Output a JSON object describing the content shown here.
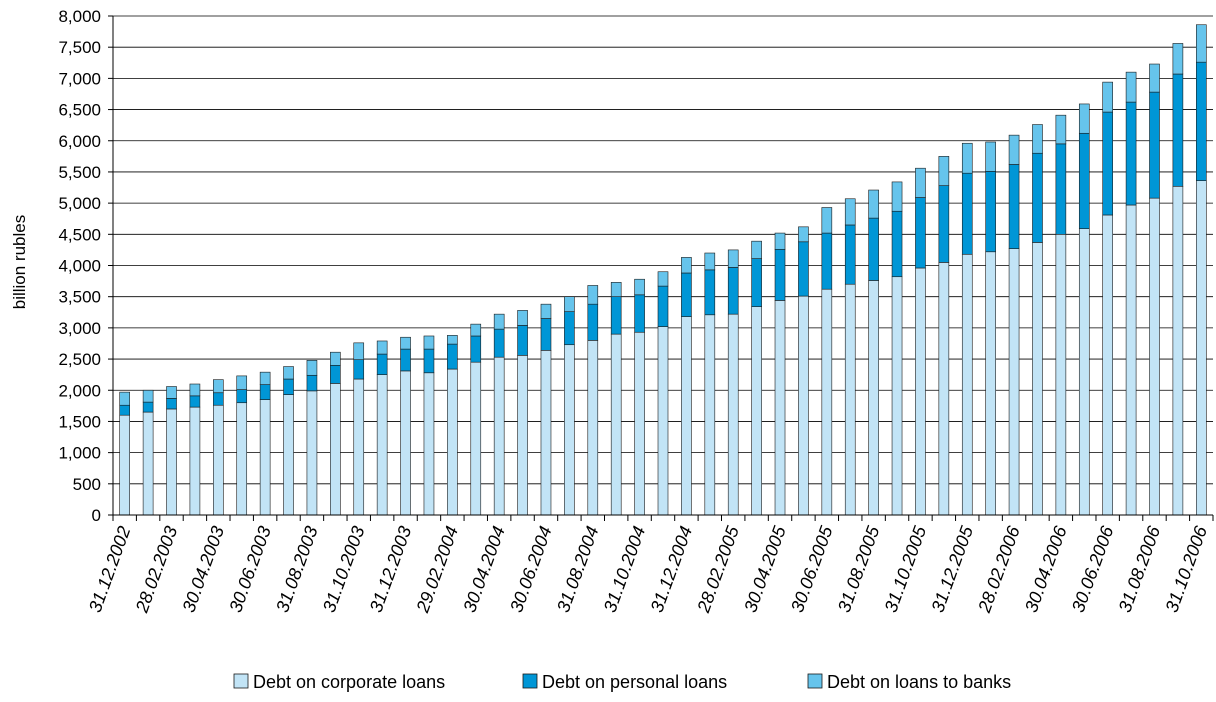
{
  "chart_data": {
    "type": "bar",
    "stacked": true,
    "title": "",
    "xlabel": "",
    "ylabel": "billion rubles",
    "ylim": [
      0,
      8000
    ],
    "yticks": [
      0,
      500,
      1000,
      1500,
      2000,
      2500,
      3000,
      3500,
      4000,
      4500,
      5000,
      5500,
      6000,
      6500,
      7000,
      7500,
      8000
    ],
    "ytick_labels": [
      "0",
      "500",
      "1,000",
      "1,500",
      "2,000",
      "2,500",
      "3,000",
      "3,500",
      "4,000",
      "4,500",
      "5,000",
      "5,500",
      "6,000",
      "6,500",
      "7,000",
      "7,500",
      "8,000"
    ],
    "grid": true,
    "legend_position": "bottom",
    "categories": [
      "31.12.2002",
      "31.01.2003",
      "28.02.2003",
      "31.03.2003",
      "30.04.2003",
      "31.05.2003",
      "30.06.2003",
      "31.07.2003",
      "31.08.2003",
      "30.09.2003",
      "31.10.2003",
      "30.11.2003",
      "31.12.2003",
      "31.01.2004",
      "29.02.2004",
      "31.03.2004",
      "30.04.2004",
      "31.05.2004",
      "30.06.2004",
      "31.07.2004",
      "31.08.2004",
      "30.09.2004",
      "31.10.2004",
      "30.11.2004",
      "31.12.2004",
      "31.01.2005",
      "28.02.2005",
      "31.03.2005",
      "30.04.2005",
      "31.05.2005",
      "30.06.2005",
      "31.07.2005",
      "31.08.2005",
      "30.09.2005",
      "31.10.2005",
      "30.11.2005",
      "31.12.2005",
      "31.01.2006",
      "28.02.2006",
      "31.03.2006",
      "30.04.2006",
      "31.05.2006",
      "30.06.2006",
      "31.07.2006",
      "31.08.2006",
      "30.09.2006",
      "31.10.2006"
    ],
    "xtick_labels_shown": [
      "31.12.2002",
      "28.02.2003",
      "30.04.2003",
      "30.06.2003",
      "31.08.2003",
      "31.10.2003",
      "31.12.2003",
      "29.02.2004",
      "30.04.2004",
      "30.06.2004",
      "31.08.2004",
      "31.10.2004",
      "31.12.2004",
      "28.02.2005",
      "30.04.2005",
      "30.06.2005",
      "31.08.2005",
      "31.10.2005",
      "31.12.2005",
      "28.02.2006",
      "30.04.2006",
      "30.06.2006",
      "31.08.2006",
      "31.10.2006"
    ],
    "series": [
      {
        "name": "Debt on corporate loans",
        "color": "#c2e4f6",
        "values": [
          1600,
          1650,
          1700,
          1730,
          1760,
          1800,
          1850,
          1930,
          1990,
          2110,
          2180,
          2250,
          2310,
          2280,
          2340,
          2450,
          2530,
          2560,
          2640,
          2730,
          2800,
          2900,
          2930,
          3020,
          3180,
          3210,
          3220,
          3340,
          3440,
          3510,
          3620,
          3700,
          3760,
          3820,
          3960,
          4050,
          4180,
          4220,
          4270,
          4370,
          4500,
          4590,
          4810,
          4970,
          5080,
          5270,
          5360
        ]
      },
      {
        "name": "Debt on personal loans",
        "color": "#0096d6",
        "values": [
          160,
          160,
          170,
          180,
          200,
          210,
          240,
          250,
          250,
          290,
          310,
          330,
          350,
          380,
          400,
          420,
          450,
          480,
          510,
          530,
          580,
          600,
          600,
          650,
          700,
          720,
          750,
          770,
          820,
          870,
          900,
          950,
          1000,
          1050,
          1130,
          1230,
          1300,
          1290,
          1350,
          1430,
          1450,
          1530,
          1650,
          1650,
          1700,
          1800,
          1900
        ]
      },
      {
        "name": "Debt on loans to banks",
        "color": "#66c4ec",
        "values": [
          210,
          190,
          190,
          190,
          210,
          220,
          200,
          200,
          240,
          210,
          270,
          210,
          190,
          210,
          140,
          190,
          240,
          240,
          230,
          240,
          300,
          230,
          250,
          230,
          250,
          270,
          280,
          280,
          260,
          240,
          410,
          420,
          450,
          470,
          470,
          470,
          480,
          470,
          470,
          460,
          460,
          470,
          480,
          480,
          450,
          490,
          600
        ]
      }
    ]
  }
}
